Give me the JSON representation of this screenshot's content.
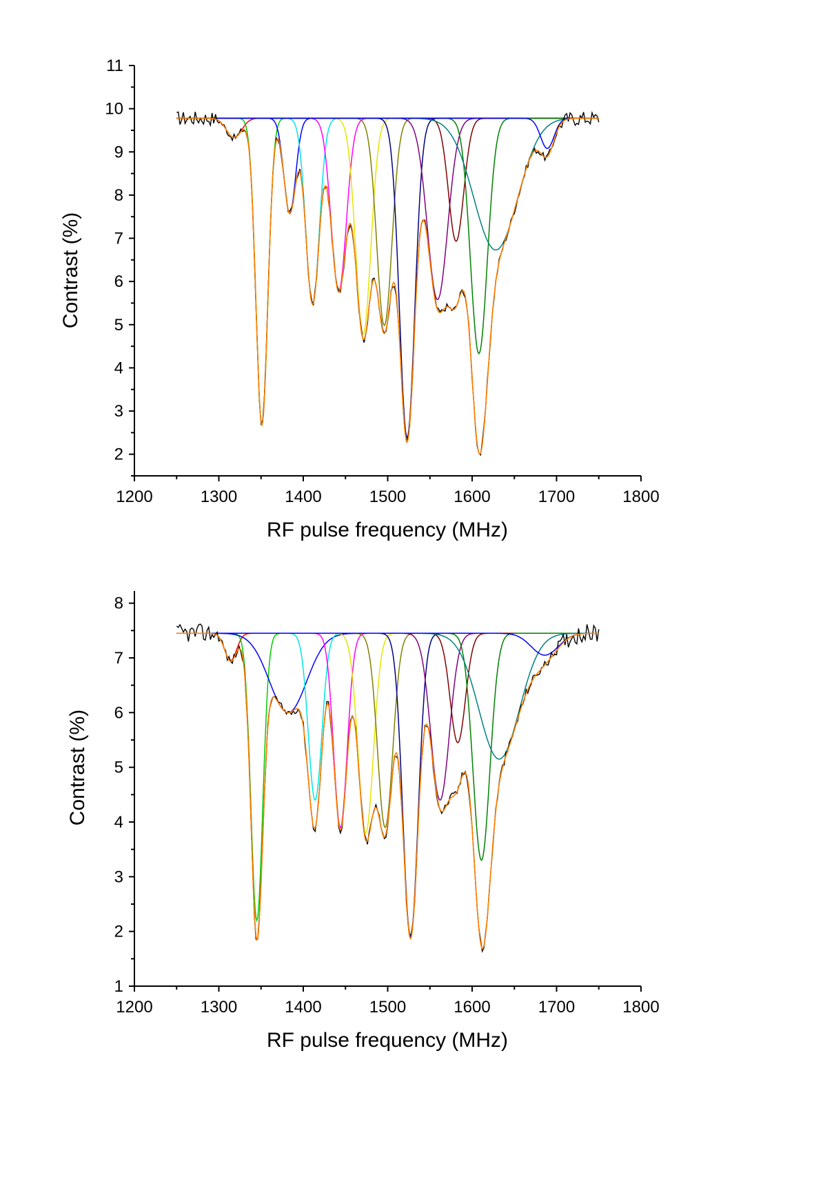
{
  "chart_data": [
    {
      "type": "line",
      "xlabel": "RF pulse frequency (MHz)",
      "ylabel": "Contrast (%)",
      "xlim": [
        1200,
        1800
      ],
      "ylim": [
        1.5,
        11
      ],
      "x_ticks": [
        1200,
        1300,
        1400,
        1500,
        1600,
        1700,
        1800
      ],
      "x_tick_labels": [
        "1200",
        "1300",
        "1400",
        "1500",
        "1600",
        "1700",
        "1800"
      ],
      "y_ticks": [
        2,
        3,
        4,
        5,
        6,
        7,
        8,
        9,
        10,
        11
      ],
      "y_tick_labels": [
        "2",
        "3",
        "4",
        "5",
        "6",
        "7",
        "8",
        "9",
        "10",
        "11"
      ],
      "grid": false,
      "data_range": [
        1250,
        1750
      ],
      "baseline": 9.78,
      "peaks": [
        {
          "center": 1318,
          "depth": 0.45,
          "sigma": 9,
          "color": "#ff0000"
        },
        {
          "center": 1351,
          "depth": 7.1,
          "sigma": 7,
          "color": "#00cc00"
        },
        {
          "center": 1384,
          "depth": 2.2,
          "sigma": 7,
          "color": "#0000ff"
        },
        {
          "center": 1411,
          "depth": 4.3,
          "sigma": 8,
          "color": "#00e5e5"
        },
        {
          "center": 1442,
          "depth": 4.0,
          "sigma": 9,
          "color": "#ff00ff"
        },
        {
          "center": 1471,
          "depth": 5.0,
          "sigma": 9,
          "color": "#e5e500"
        },
        {
          "center": 1496,
          "depth": 4.8,
          "sigma": 9,
          "color": "#808000"
        },
        {
          "center": 1523,
          "depth": 7.4,
          "sigma": 9,
          "color": "#000080"
        },
        {
          "center": 1559,
          "depth": 4.2,
          "sigma": 12,
          "color": "#800080"
        },
        {
          "center": 1581,
          "depth": 2.85,
          "sigma": 9,
          "color": "#800000"
        },
        {
          "center": 1608,
          "depth": 5.45,
          "sigma": 10,
          "color": "#008000"
        },
        {
          "center": 1628,
          "depth": 3.05,
          "sigma": 26,
          "color": "#008080"
        },
        {
          "center": 1689,
          "depth": 0.7,
          "sigma": 8,
          "color": "#0000ff"
        }
      ],
      "series": [
        {
          "role": "measured data",
          "color": "#000000"
        },
        {
          "role": "cumulative fit",
          "color": "#ff8000"
        }
      ]
    },
    {
      "type": "line",
      "xlabel": "RF pulse frequency (MHz)",
      "ylabel": "Contrast (%)",
      "xlim": [
        1200,
        1800
      ],
      "ylim": [
        1,
        8.5
      ],
      "x_ticks": [
        1200,
        1300,
        1400,
        1500,
        1600,
        1700,
        1800
      ],
      "x_tick_labels": [
        "1200",
        "1300",
        "1400",
        "1500",
        "1600",
        "1700",
        "1800"
      ],
      "y_ticks": [
        1,
        2,
        3,
        4,
        5,
        6,
        7,
        8
      ],
      "y_tick_labels": [
        "1",
        "2",
        "3",
        "4",
        "5",
        "6",
        "7",
        "8"
      ],
      "grid": false,
      "data_range": [
        1250,
        1750
      ],
      "baseline": 7.45,
      "peaks": [
        {
          "center": 1314,
          "depth": 0.5,
          "sigma": 7,
          "color": "#ff0000"
        },
        {
          "center": 1345,
          "depth": 5.25,
          "sigma": 7,
          "color": "#00cc00"
        },
        {
          "center": 1382,
          "depth": 1.45,
          "sigma": 22,
          "color": "#0000ff"
        },
        {
          "center": 1414,
          "depth": 3.05,
          "sigma": 8,
          "color": "#00e5e5"
        },
        {
          "center": 1444,
          "depth": 3.55,
          "sigma": 8,
          "color": "#ff00ff"
        },
        {
          "center": 1474,
          "depth": 3.65,
          "sigma": 9,
          "color": "#e5e500"
        },
        {
          "center": 1497,
          "depth": 3.55,
          "sigma": 9,
          "color": "#808000"
        },
        {
          "center": 1527,
          "depth": 5.55,
          "sigma": 9,
          "color": "#000080"
        },
        {
          "center": 1562,
          "depth": 3.05,
          "sigma": 11,
          "color": "#800080"
        },
        {
          "center": 1583,
          "depth": 2.0,
          "sigma": 9,
          "color": "#800000"
        },
        {
          "center": 1611,
          "depth": 4.15,
          "sigma": 10,
          "color": "#008000"
        },
        {
          "center": 1632,
          "depth": 2.3,
          "sigma": 24,
          "color": "#008080"
        },
        {
          "center": 1686,
          "depth": 0.4,
          "sigma": 16,
          "color": "#0000ff"
        }
      ],
      "series": [
        {
          "role": "measured data",
          "color": "#000000"
        },
        {
          "role": "cumulative fit",
          "color": "#ff8000"
        }
      ]
    }
  ]
}
